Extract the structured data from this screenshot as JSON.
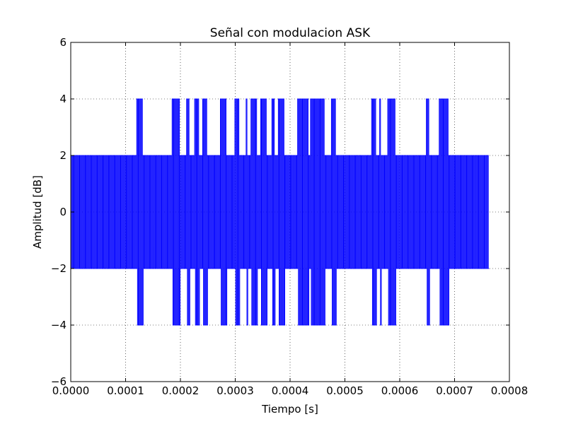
{
  "chart_data": {
    "type": "line",
    "title": "Señal con modulacion ASK",
    "xlabel": "Tiempo [s]",
    "ylabel": "Amplitud [dB]",
    "xlim": [
      0.0,
      0.0008
    ],
    "ylim": [
      -6,
      6
    ],
    "x_ticks": [
      0.0,
      0.0001,
      0.0002,
      0.0003,
      0.0004,
      0.0005,
      0.0006,
      0.0007,
      0.0008
    ],
    "x_tick_labels": [
      "0.0000",
      "0.0001",
      "0.0002",
      "0.0003",
      "0.0004",
      "0.0005",
      "0.0006",
      "0.0007",
      "0.0008"
    ],
    "y_ticks": [
      -6,
      -4,
      -2,
      0,
      2,
      4,
      6
    ],
    "y_tick_labels": [
      "−6",
      "−4",
      "−2",
      "0",
      "2",
      "4",
      "6"
    ],
    "grid": true,
    "grid_style": "dotted",
    "line_color": "#0000ff",
    "series": [
      {
        "signal": "ask",
        "t_end": 0.000763,
        "carrier_cycles": 260,
        "low_amplitude": 2,
        "high_amplitude": 4,
        "high_amplitude_intervals": [
          [
            0.000121,
            0.00013
          ],
          [
            0.000183,
            0.000198
          ],
          [
            0.000211,
            0.000216
          ],
          [
            0.000226,
            0.000233
          ],
          [
            0.000241,
            0.000249
          ],
          [
            0.000273,
            0.000283
          ],
          [
            0.000299,
            0.000307
          ],
          [
            0.000318,
            0.000323
          ],
          [
            0.000328,
            0.00034
          ],
          [
            0.000345,
            0.000358
          ],
          [
            0.000366,
            0.000373
          ],
          [
            0.000378,
            0.00039
          ],
          [
            0.000412,
            0.000434
          ],
          [
            0.000437,
            0.000463
          ],
          [
            0.000474,
            0.000484
          ],
          [
            0.000548,
            0.000557
          ],
          [
            0.000562,
            0.000567
          ],
          [
            0.000578,
            0.000591
          ],
          [
            0.000648,
            0.000655
          ],
          [
            0.00067,
            0.00069
          ]
        ]
      }
    ]
  }
}
